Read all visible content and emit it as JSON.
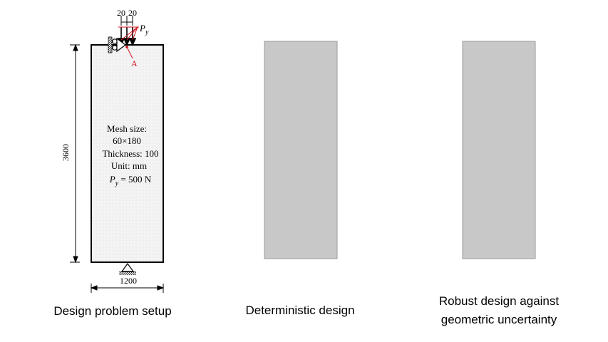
{
  "panels": [
    {
      "caption_lines": [
        "Design problem setup"
      ],
      "dims": {
        "top_left": "20",
        "top_right": "20",
        "height": "3600",
        "width": "1200"
      },
      "load": {
        "symbol": "P",
        "subscript": "y",
        "point_label": "A"
      },
      "info": {
        "mesh_label": "Mesh size:",
        "mesh_value": "60×180",
        "thickness": "Thickness: 100",
        "unit": "Unit: mm",
        "py_symbol": "P",
        "py_sub": "y",
        "py_value": " = 500 N"
      }
    },
    {
      "caption_lines": [
        "Deterministic design"
      ]
    },
    {
      "caption_lines": [
        "Robust design against",
        "geometric uncertainty"
      ]
    }
  ],
  "colors": {
    "design_fill": "#c8c8c8",
    "domain_fill": "#f4f4f4",
    "line": "#000000",
    "accent": "#d0101a"
  }
}
